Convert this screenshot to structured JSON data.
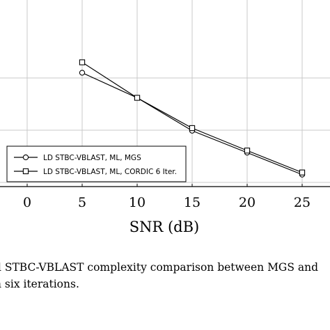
{
  "chart_data": {
    "type": "line",
    "xlabel": "SNR (dB)",
    "ylabel": "",
    "xlim": [
      -2.5,
      27.5
    ],
    "ylim": [
      0,
      100
    ],
    "xticks": [
      0,
      5,
      10,
      15,
      20,
      25
    ],
    "yticks": [
      0,
      50,
      100
    ],
    "grid": true,
    "legend": "bottom-left",
    "series": [
      {
        "name": "LD STBC-VBLAST, ML, MGS",
        "marker": "circle",
        "x": [
          5,
          10,
          15,
          20,
          25
        ],
        "y": [
          105,
          81,
          49.5,
          28.5,
          7.5
        ]
      },
      {
        "name": "LD STBC-VBLAST, ML, CORDIC 6 Iter.",
        "marker": "square",
        "x": [
          5,
          10,
          15,
          20,
          25
        ],
        "y": [
          115,
          81,
          52,
          30.5,
          9.5
        ]
      }
    ]
  },
  "caption": {
    "line1": "d STBC-VBLAST complexity comparison between MGS and",
    "line2": "h six iterations."
  }
}
